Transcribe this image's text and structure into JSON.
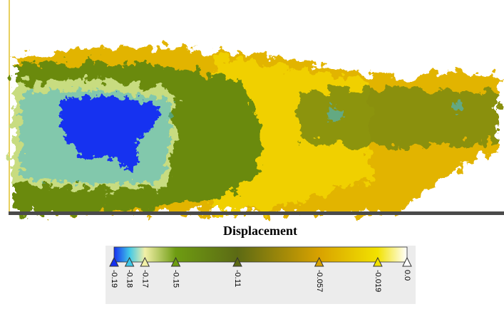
{
  "title": "Displacement",
  "colorbar": {
    "stops": [
      {
        "value": -0.19,
        "color": "#1530f0"
      },
      {
        "value": -0.18,
        "color": "#40c8e8"
      },
      {
        "value": -0.17,
        "color": "#f2f0a8"
      },
      {
        "value": -0.15,
        "color": "#6e9c12"
      },
      {
        "value": -0.11,
        "color": "#5c6a14"
      },
      {
        "value": -0.057,
        "color": "#d8a200"
      },
      {
        "value": -0.019,
        "color": "#f2e200"
      },
      {
        "value": 0,
        "label": "0.0",
        "color": "#ffffff"
      }
    ]
  }
}
